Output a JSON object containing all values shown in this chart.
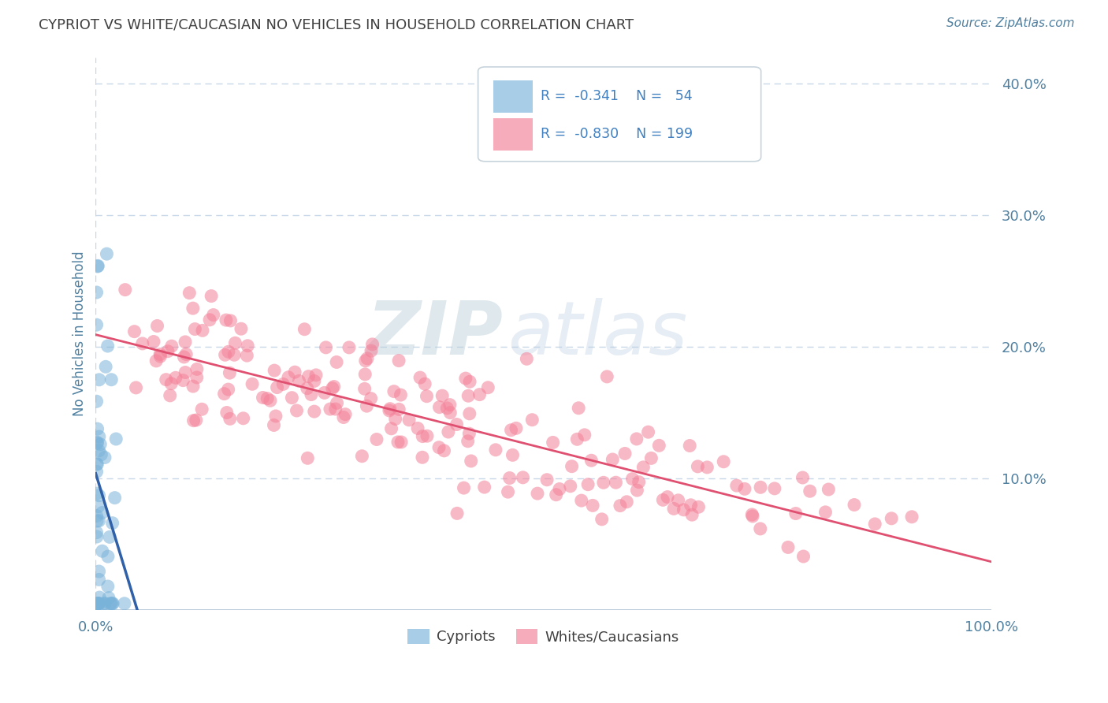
{
  "title": "CYPRIOT VS WHITE/CAUCASIAN NO VEHICLES IN HOUSEHOLD CORRELATION CHART",
  "source": "Source: ZipAtlas.com",
  "ylabel": "No Vehicles in Household",
  "xlim": [
    0,
    1.0
  ],
  "ylim": [
    0,
    0.42
  ],
  "y_ticks_right": [
    0.1,
    0.2,
    0.3,
    0.4
  ],
  "y_tick_labels_right": [
    "10.0%",
    "20.0%",
    "30.0%",
    "40.0%"
  ],
  "cypriot_color": "#7ab3d9",
  "caucasian_color": "#f48098",
  "cypriot_R": -0.341,
  "cypriot_N": 54,
  "caucasian_R": -0.83,
  "caucasian_N": 199,
  "watermark_zip": "ZIP",
  "watermark_atlas": "atlas",
  "background_color": "#ffffff",
  "grid_color": "#c8d8e8",
  "title_color": "#404040",
  "axis_label_color": "#5080a0",
  "legend_text_color": "#4080c0",
  "regression_cypriot_color": "#3060a8",
  "regression_caucasian_color": "#e05070",
  "legend_cyp_r": "-0.341",
  "legend_cyp_n": "54",
  "legend_cau_r": "-0.830",
  "legend_cau_n": "199"
}
